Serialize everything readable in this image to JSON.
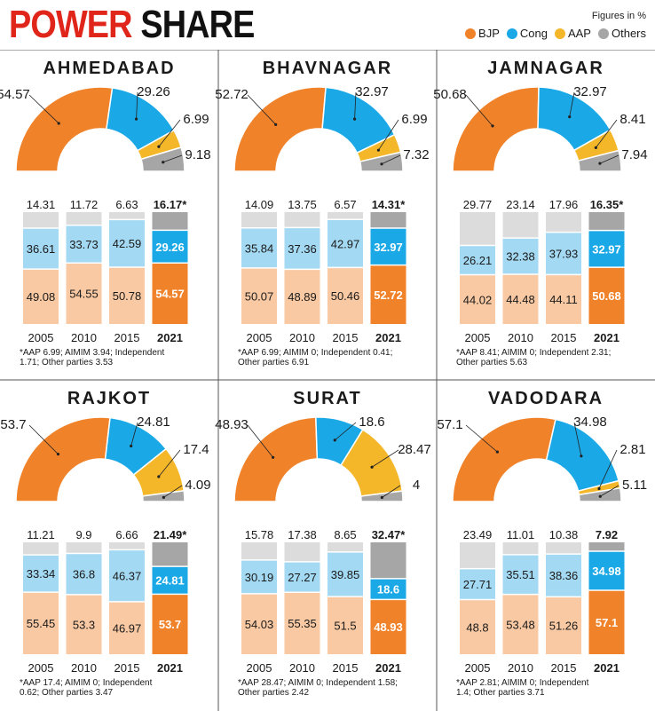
{
  "header": {
    "title_red": "POWER",
    "title_black": "SHARE",
    "note": "Figures in %"
  },
  "legend": [
    {
      "label": "BJP",
      "color": "#f0822a"
    },
    {
      "label": "Cong",
      "color": "#1aa8e6"
    },
    {
      "label": "AAP",
      "color": "#f5b72a"
    },
    {
      "label": "Others",
      "color": "#a6a6a6"
    }
  ],
  "colors": {
    "bjp": "#f0822a",
    "cong": "#1aa8e6",
    "aap": "#f5b72a",
    "others": "#a6a6a6",
    "bjp_light": "#f9c9a3",
    "cong_light": "#a3d9f2",
    "others_light": "#dcdcdc"
  },
  "chart_data": [
    {
      "type": "pie",
      "title": "AHMEDABAD",
      "donut_2021": {
        "BJP": 54.57,
        "Cong": 29.26,
        "AAP": 6.99,
        "Others": 9.18
      },
      "bars": {
        "type": "bar",
        "categories": [
          "2005",
          "2010",
          "2015",
          "2021"
        ],
        "series": [
          {
            "name": "BJP",
            "values": [
              49.08,
              54.55,
              50.78,
              54.57
            ]
          },
          {
            "name": "Cong",
            "values": [
              36.61,
              33.73,
              42.59,
              29.26
            ]
          },
          {
            "name": "Others",
            "values": [
              14.31,
              11.72,
              6.63,
              16.17
            ]
          }
        ],
        "top_labels": [
          "14.31",
          "11.72",
          "6.63",
          "16.17*"
        ],
        "label_labels": [
          [
            "49.08",
            "36.61"
          ],
          [
            "54.55",
            "33.73"
          ],
          [
            "50.78",
            "42.59"
          ],
          [
            "54.57",
            "29.26"
          ]
        ]
      },
      "footnote": [
        "*AAP 6.99; AIMIM 3.94; Independent",
        "1.71; Other parties 3.53"
      ]
    },
    {
      "type": "pie",
      "title": "BHAVNAGAR",
      "donut_2021": {
        "BJP": 52.72,
        "Cong": 32.97,
        "AAP": 6.99,
        "Others": 7.32
      },
      "bars": {
        "type": "bar",
        "categories": [
          "2005",
          "2010",
          "2015",
          "2021"
        ],
        "series": [
          {
            "name": "BJP",
            "values": [
              50.07,
              48.89,
              50.46,
              52.72
            ]
          },
          {
            "name": "Cong",
            "values": [
              35.84,
              37.36,
              42.97,
              32.97
            ]
          },
          {
            "name": "Others",
            "values": [
              14.09,
              13.75,
              6.57,
              14.31
            ]
          }
        ],
        "top_labels": [
          "14.09",
          "13.75",
          "6.57",
          "14.31*"
        ],
        "label_labels": [
          [
            "50.07",
            "35.84"
          ],
          [
            "48.89",
            "37.36"
          ],
          [
            "50.46",
            "42.97"
          ],
          [
            "52.72",
            "32.97"
          ]
        ]
      },
      "footnote": [
        "*AAP 6.99; AIMIM 0; Independent 0.41;",
        "Other parties 6.91"
      ]
    },
    {
      "type": "pie",
      "title": "JAMNAGAR",
      "donut_2021": {
        "BJP": 50.68,
        "Cong": 32.97,
        "AAP": 8.41,
        "Others": 7.94
      },
      "bars": {
        "type": "bar",
        "categories": [
          "2005",
          "2010",
          "2015",
          "2021"
        ],
        "series": [
          {
            "name": "BJP",
            "values": [
              44.02,
              44.48,
              44.11,
              50.68
            ]
          },
          {
            "name": "Cong",
            "values": [
              26.21,
              32.38,
              37.93,
              32.97
            ]
          },
          {
            "name": "Others",
            "values": [
              29.77,
              23.14,
              17.96,
              16.35
            ]
          }
        ],
        "top_labels": [
          "29.77",
          "23.14",
          "17.96",
          "16.35*"
        ],
        "label_labels": [
          [
            "44.02",
            "26.21"
          ],
          [
            "44.48",
            "32.38"
          ],
          [
            "44.11",
            "37.93"
          ],
          [
            "50.68",
            "32.97"
          ]
        ]
      },
      "footnote": [
        "*AAP 8.41; AIMIM 0; Independent 2.31;",
        "Other parties 5.63"
      ]
    },
    {
      "type": "pie",
      "title": "RAJKOT",
      "donut_2021": {
        "BJP": 53.7,
        "Cong": 24.81,
        "AAP": 17.4,
        "Others": 4.09
      },
      "bars": {
        "type": "bar",
        "categories": [
          "2005",
          "2010",
          "2015",
          "2021"
        ],
        "series": [
          {
            "name": "BJP",
            "values": [
              55.45,
              53.3,
              46.97,
              53.7
            ]
          },
          {
            "name": "Cong",
            "values": [
              33.34,
              36.8,
              46.37,
              24.81
            ]
          },
          {
            "name": "Others",
            "values": [
              11.21,
              9.9,
              6.66,
              21.49
            ]
          }
        ],
        "top_labels": [
          "11.21",
          "9.9",
          "6.66",
          "21.49*"
        ],
        "label_labels": [
          [
            "55.45",
            "33.34"
          ],
          [
            "53.3",
            "36.8"
          ],
          [
            "46.97",
            "46.37"
          ],
          [
            "53.7",
            "24.81"
          ]
        ]
      },
      "footnote": [
        "*AAP 17.4; AIMIM 0; Independent",
        "0.62; Other parties 3.47"
      ]
    },
    {
      "type": "pie",
      "title": "SURAT",
      "donut_2021": {
        "BJP": 48.93,
        "Cong": 18.6,
        "AAP": 28.47,
        "Others": 4
      },
      "bars": {
        "type": "bar",
        "categories": [
          "2005",
          "2010",
          "2015",
          "2021"
        ],
        "series": [
          {
            "name": "BJP",
            "values": [
              54.03,
              55.35,
              51.5,
              48.93
            ]
          },
          {
            "name": "Cong",
            "values": [
              30.19,
              27.27,
              39.85,
              18.6
            ]
          },
          {
            "name": "Others",
            "values": [
              15.78,
              17.38,
              8.65,
              32.47
            ]
          }
        ],
        "top_labels": [
          "15.78",
          "17.38",
          "8.65",
          "32.47*"
        ],
        "label_labels": [
          [
            "54.03",
            "30.19"
          ],
          [
            "55.35",
            "27.27"
          ],
          [
            "51.5",
            "39.85"
          ],
          [
            "48.93",
            "18.6"
          ]
        ]
      },
      "footnote": [
        "*AAP 28.47; AIMIM 0; Independent 1.58;",
        "Other parties 2.42"
      ]
    },
    {
      "type": "pie",
      "title": "VADODARA",
      "donut_2021": {
        "BJP": 57.1,
        "Cong": 34.98,
        "AAP": 2.81,
        "Others": 5.11
      },
      "bars": {
        "type": "bar",
        "categories": [
          "2005",
          "2010",
          "2015",
          "2021"
        ],
        "series": [
          {
            "name": "BJP",
            "values": [
              48.8,
              53.48,
              51.26,
              57.1
            ]
          },
          {
            "name": "Cong",
            "values": [
              27.71,
              35.51,
              38.36,
              34.98
            ]
          },
          {
            "name": "Others",
            "values": [
              23.49,
              11.01,
              10.38,
              7.92
            ]
          }
        ],
        "top_labels": [
          "23.49",
          "11.01",
          "10.38",
          "7.92"
        ],
        "label_labels": [
          [
            "48.8",
            "27.71"
          ],
          [
            "53.48",
            "35.51"
          ],
          [
            "51.26",
            "38.36"
          ],
          [
            "57.1",
            "34.98"
          ]
        ]
      },
      "footnote": [
        "*AAP 2.81; AIMIM 0; Independent",
        "1.4; Other parties 3.71"
      ]
    }
  ]
}
